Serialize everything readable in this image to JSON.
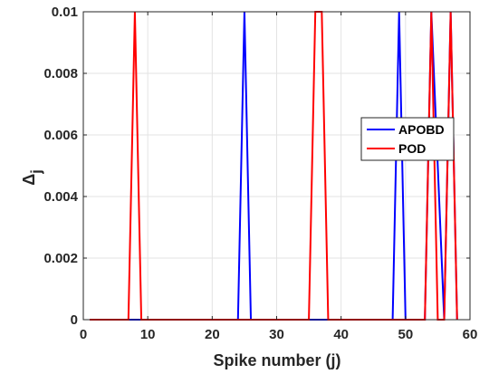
{
  "chart_data": {
    "type": "line",
    "title": "",
    "xlabel": "Spike number (j)",
    "ylabel_symbol": "Δ",
    "ylabel_subscript": "j",
    "xlim": [
      0,
      60
    ],
    "ylim": [
      0,
      0.01
    ],
    "x_ticks": [
      0,
      10,
      20,
      30,
      40,
      50,
      60
    ],
    "x_tick_labels": [
      "0",
      "10",
      "20",
      "30",
      "40",
      "50",
      "60"
    ],
    "y_ticks": [
      0,
      0.002,
      0.004,
      0.006,
      0.008,
      0.01
    ],
    "y_tick_labels": [
      "0",
      "0.002",
      "0.004",
      "0.006",
      "0.008",
      "0.01"
    ],
    "grid": true,
    "legend_position": "right",
    "series": [
      {
        "name": "APOBD",
        "color": "#0000ff",
        "x": [
          1,
          24,
          25,
          26,
          48,
          49,
          50,
          53,
          54,
          56,
          57,
          58
        ],
        "y": [
          0,
          0,
          0.01,
          0,
          0,
          0.01,
          0,
          0,
          0.01,
          0,
          0.01,
          0
        ]
      },
      {
        "name": "POD",
        "color": "#ff0000",
        "x": [
          1,
          7,
          8,
          9,
          35,
          36,
          37,
          38,
          53,
          54,
          55,
          56,
          57,
          58
        ],
        "y": [
          0,
          0,
          0.01,
          0,
          0,
          0.01,
          0.01,
          0,
          0,
          0.01,
          0,
          0,
          0.01,
          0
        ]
      }
    ]
  }
}
